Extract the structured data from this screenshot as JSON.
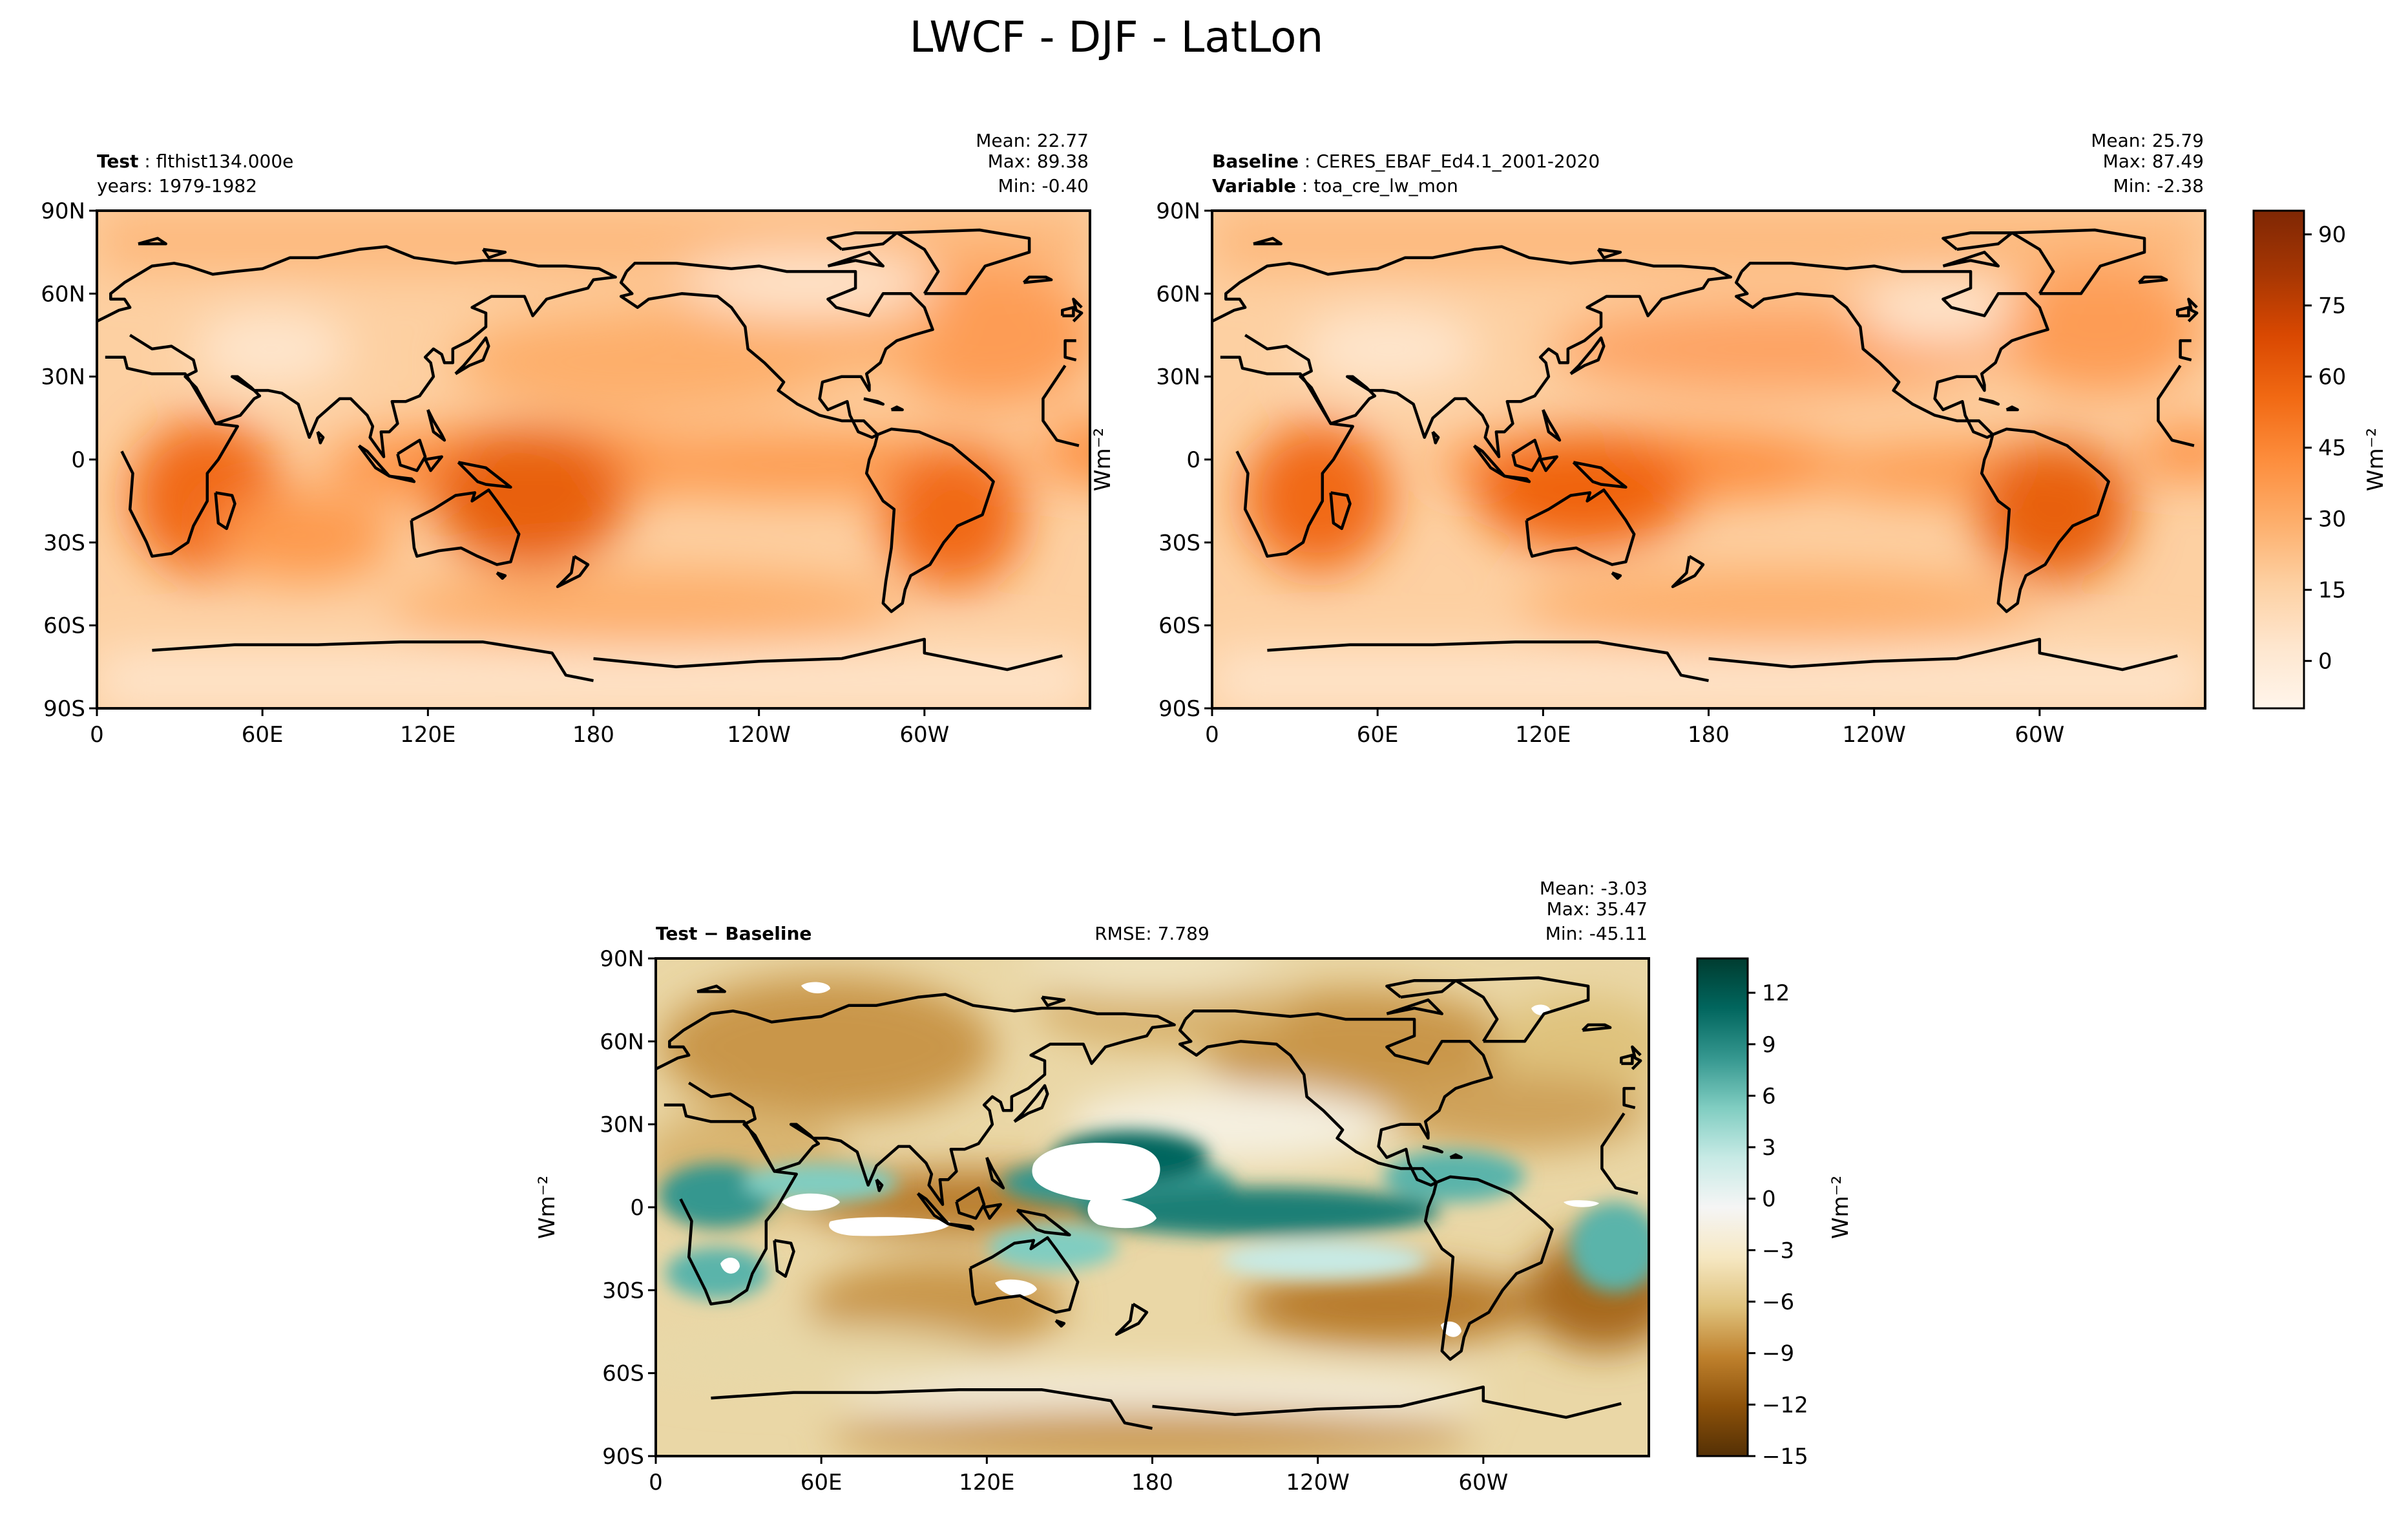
{
  "figure_title": "LWCF - DJF - LatLon",
  "panels": {
    "test": {
      "label_bold": "Test",
      "label_value": "flthist134.000e",
      "line2": "years: 1979-1982",
      "mean": "Mean: 22.77",
      "max": "Max: 89.38",
      "min": "Min: -0.40"
    },
    "baseline": {
      "label_bold": "Baseline",
      "label_value": "CERES_EBAF_Ed4.1_2001-2020",
      "line2_bold": "Variable",
      "line2_value": "toa_cre_lw_mon",
      "mean": "Mean: 25.79",
      "max": "Max: 87.49",
      "min": "Min: -2.38"
    },
    "diff": {
      "label_bold": "Test − Baseline",
      "rmse": "RMSE: 7.789",
      "mean": "Mean: -3.03",
      "max": "Max: 35.47",
      "min": "Min: -45.11"
    }
  },
  "colors": {
    "seq": [
      "#fff5eb",
      "#fee6ce",
      "#fdd0a2",
      "#fdae6b",
      "#fd8d3c",
      "#f16913",
      "#d94801",
      "#a63603",
      "#7f2704"
    ],
    "div": [
      "#543005",
      "#8c510a",
      "#bf812d",
      "#dfc27d",
      "#f6e8c3",
      "#f5f5f5",
      "#c7eae5",
      "#80cdc1",
      "#35978f",
      "#01665e",
      "#003c30"
    ]
  },
  "chart_data": [
    {
      "type": "heatmap",
      "id": "test",
      "title": "Test : flthist134.000e",
      "x_ticks": [
        "0",
        "60E",
        "120E",
        "180",
        "120W",
        "60W"
      ],
      "y_ticks": [
        "90N",
        "60N",
        "30N",
        "0",
        "30S",
        "60S",
        "90S"
      ],
      "xlim": [
        0,
        360
      ],
      "ylim": [
        -90,
        90
      ],
      "ylabel": "Wm⁻²",
      "colorbar": "shared_abs",
      "stats": {
        "mean": 22.77,
        "max": 89.38,
        "min": -0.4
      }
    },
    {
      "type": "heatmap",
      "id": "baseline",
      "title": "Baseline : CERES_EBAF_Ed4.1_2001-2020",
      "x_ticks": [
        "0",
        "60E",
        "120E",
        "180",
        "120W",
        "60W"
      ],
      "y_ticks": [
        "90N",
        "60N",
        "30N",
        "0",
        "30S",
        "60S",
        "90S"
      ],
      "xlim": [
        0,
        360
      ],
      "ylim": [
        -90,
        90
      ],
      "colorbar": {
        "label": "Wm⁻²",
        "ticks": [
          "0",
          "15",
          "30",
          "45",
          "60",
          "75",
          "90"
        ],
        "tick_values": [
          0,
          15,
          30,
          45,
          60,
          75,
          90
        ],
        "range": [
          -10,
          95
        ]
      },
      "stats": {
        "mean": 25.79,
        "max": 87.49,
        "min": -2.38
      }
    },
    {
      "type": "heatmap",
      "id": "diff",
      "title": "Test − Baseline",
      "x_ticks": [
        "0",
        "60E",
        "120E",
        "180",
        "120W",
        "60W"
      ],
      "y_ticks": [
        "90N",
        "60N",
        "30N",
        "0",
        "30S",
        "60S",
        "90S"
      ],
      "xlim": [
        0,
        360
      ],
      "ylim": [
        -90,
        90
      ],
      "ylabel": "Wm⁻²",
      "colorbar": {
        "label": "Wm⁻²",
        "ticks": [
          "12",
          "9",
          "6",
          "3",
          "0",
          "−3",
          "−6",
          "−9",
          "−12",
          "−15"
        ],
        "tick_values": [
          12,
          9,
          6,
          3,
          0,
          -3,
          -6,
          -9,
          -12,
          -15
        ],
        "range": [
          -15,
          14
        ]
      },
      "stats": {
        "mean": -3.03,
        "max": 35.47,
        "min": -45.11,
        "rmse": 7.789
      }
    }
  ]
}
